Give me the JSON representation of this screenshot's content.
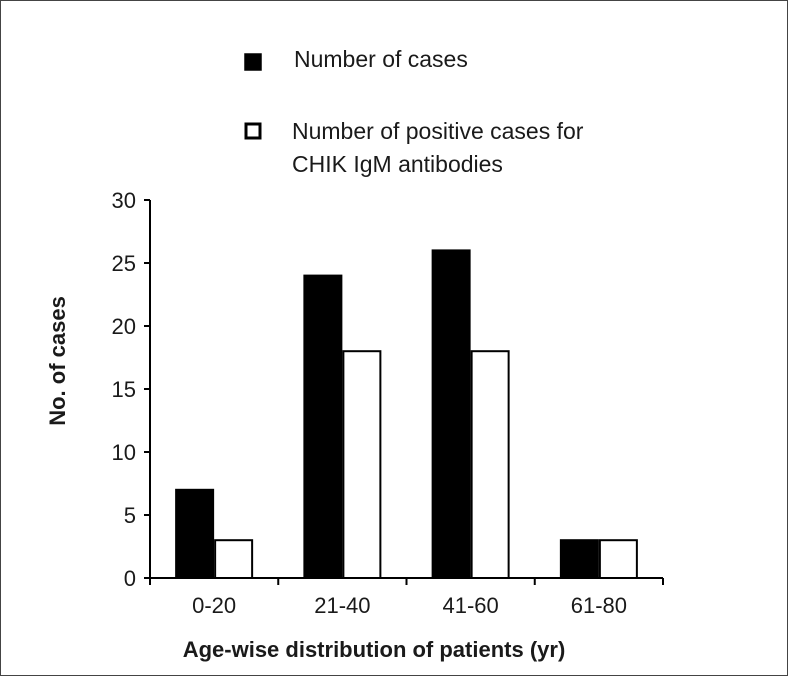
{
  "chart_data": {
    "type": "bar",
    "title": "",
    "xlabel": "Age-wise distribution of patients (yr)",
    "ylabel": "No. of cases",
    "categories": [
      "0-20",
      "21-40",
      "41-60",
      "61-80"
    ],
    "series": [
      {
        "name": "Number of cases",
        "values": [
          7,
          24,
          26,
          3
        ],
        "color": "#000000",
        "fill": "solid"
      },
      {
        "name": "Number of positive cases for CHIK IgM antibodies",
        "values": [
          3,
          18,
          18,
          3
        ],
        "color": "#ffffff",
        "fill": "outline"
      }
    ],
    "ylim": [
      0,
      30
    ],
    "yticks": [
      0,
      5,
      10,
      15,
      20,
      25,
      30
    ],
    "grid": false,
    "legend_position": "top",
    "legend": {
      "line1": "Number of cases",
      "line2a": "Number of positive cases for",
      "line2b": "CHIK IgM antibodies"
    }
  }
}
